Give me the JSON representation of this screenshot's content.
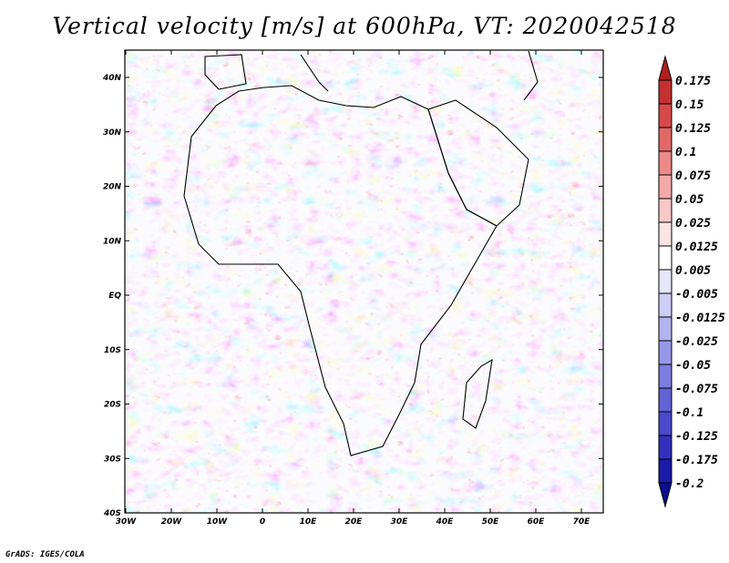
{
  "title": "Vertical velocity [m/s] at 600hPa, VT: 2020042518",
  "footer": "GrADS: IGES/COLA",
  "map": {
    "region": "Africa",
    "lon_range": [
      -30,
      75
    ],
    "lat_range": [
      -40,
      45
    ],
    "x_ticks": [
      "30W",
      "20W",
      "10W",
      "0",
      "10E",
      "20E",
      "30E",
      "40E",
      "50E",
      "60E",
      "70E"
    ],
    "y_ticks": [
      "40N",
      "30N",
      "20N",
      "10N",
      "EQ",
      "10S",
      "20S",
      "30S",
      "40S"
    ],
    "field": "vertical velocity",
    "units": "m/s",
    "level": "600hPa",
    "valid_time": "2020042518"
  },
  "colorbar": {
    "labels": [
      "0.175",
      "0.15",
      "0.125",
      "0.1",
      "0.075",
      "0.05",
      "0.025",
      "0.0125",
      "0.005",
      "-0.005",
      "-0.0125",
      "-0.025",
      "-0.05",
      "-0.075",
      "-0.1",
      "-0.125",
      "-0.175",
      "-0.2"
    ],
    "colors": [
      "#b02020",
      "#c43030",
      "#d64a4a",
      "#e26868",
      "#ec8a8a",
      "#f4aaaa",
      "#f9c8c8",
      "#fde4e4",
      "#ffffff",
      "#e6e6fb",
      "#cdcdf5",
      "#b3b3ef",
      "#9898e8",
      "#7d7de0",
      "#6363d6",
      "#4a4acb",
      "#3131bd",
      "#1a1aa8",
      "#0d0d90"
    ]
  }
}
